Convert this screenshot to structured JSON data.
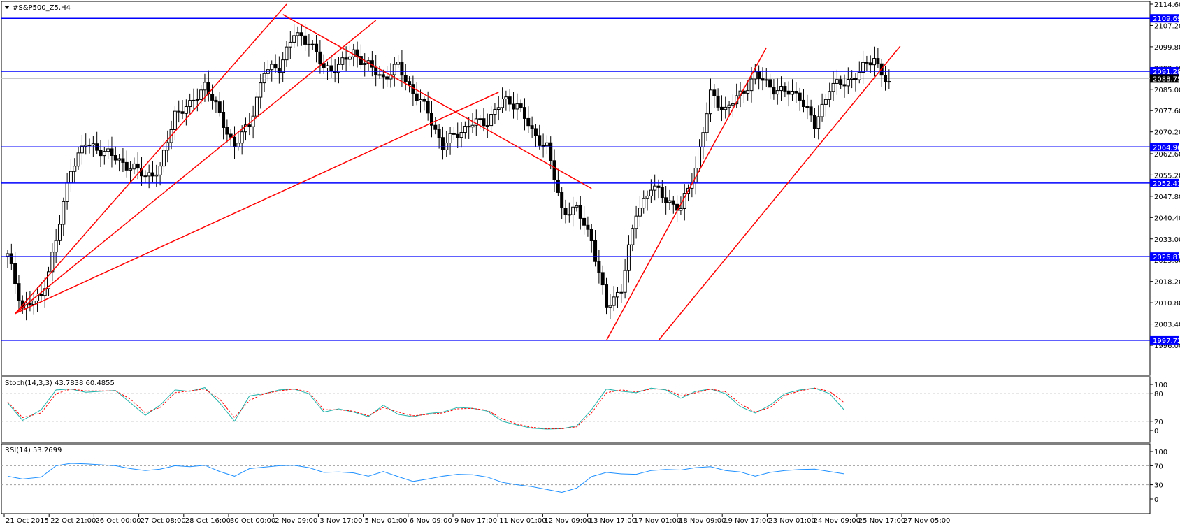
{
  "window": {
    "title": "#S&P500_Z5,H4",
    "menu_icon": "triangle-down-icon"
  },
  "colors": {
    "hline": "#0000ff",
    "trend": "#ff0000",
    "candle": "#000000",
    "stoch_main": "#20b2aa",
    "stoch_signal": "#ff0000",
    "rsi": "#1e90ff",
    "level_dash": "#a0a0a0"
  },
  "chart_data": [
    {
      "type": "candlestick",
      "title": "#S&P500_Z5,H4",
      "ylim": [
        1996.0,
        2114.6
      ],
      "y_ticks": [
        "2114.60",
        "2107.20",
        "2099.80",
        "2092.40",
        "2085.00",
        "2077.60",
        "2070.20",
        "2062.60",
        "2055.20",
        "2047.80",
        "2040.40",
        "2033.00",
        "2025.60",
        "2018.20",
        "2010.80",
        "2003.40",
        "1996.00"
      ],
      "x_ticks": [
        "21 Oct 2015",
        "22 Oct 21:00",
        "26 Oct 00:00",
        "27 Oct 08:00",
        "28 Oct 16:00",
        "30 Oct 00:00",
        "2 Nov 09:00",
        "3 Nov 17:00",
        "5 Nov 01:00",
        "6 Nov 09:00",
        "9 Nov 17:00",
        "11 Nov 01:00",
        "12 Nov 09:00",
        "13 Nov 17:00",
        "17 Nov 01:00",
        "18 Nov 09:00",
        "19 Nov 17:00",
        "23 Nov 01:00",
        "24 Nov 09:00",
        "25 Nov 17:00",
        "27 Nov 05:00"
      ],
      "current_price": 2088.75,
      "horizontal_levels": [
        2109.69,
        2091.28,
        2064.96,
        2052.41,
        2026.83,
        1997.72
      ],
      "close_path": [
        [
          0,
          2027
        ],
        [
          4,
          2009
        ],
        [
          9,
          2013
        ],
        [
          13,
          2032
        ],
        [
          17,
          2058
        ],
        [
          21,
          2066
        ],
        [
          25,
          2064
        ],
        [
          29,
          2061
        ],
        [
          33,
          2058
        ],
        [
          37,
          2055
        ],
        [
          41,
          2057
        ],
        [
          45,
          2077
        ],
        [
          49,
          2079
        ],
        [
          53,
          2087
        ],
        [
          57,
          2076
        ],
        [
          61,
          2065
        ],
        [
          65,
          2073
        ],
        [
          69,
          2091
        ],
        [
          73,
          2093
        ],
        [
          77,
          2104
        ],
        [
          81,
          2102
        ],
        [
          85,
          2092
        ],
        [
          89,
          2093
        ],
        [
          93,
          2098
        ],
        [
          97,
          2093
        ],
        [
          101,
          2089
        ],
        [
          105,
          2093
        ],
        [
          109,
          2084
        ],
        [
          113,
          2077
        ],
        [
          117,
          2065
        ],
        [
          121,
          2070
        ],
        [
          125,
          2073
        ],
        [
          129,
          2074
        ],
        [
          133,
          2081
        ],
        [
          137,
          2080
        ],
        [
          141,
          2070
        ],
        [
          145,
          2065
        ],
        [
          149,
          2043
        ],
        [
          153,
          2043
        ],
        [
          157,
          2033
        ],
        [
          161,
          2009
        ],
        [
          165,
          2016
        ],
        [
          169,
          2042
        ],
        [
          173,
          2051
        ],
        [
          177,
          2047
        ],
        [
          181,
          2043
        ],
        [
          185,
          2058
        ],
        [
          189,
          2083
        ],
        [
          193,
          2078
        ],
        [
          197,
          2083
        ],
        [
          201,
          2090
        ],
        [
          205,
          2086
        ],
        [
          209,
          2084
        ],
        [
          213,
          2083
        ],
        [
          217,
          2072
        ],
        [
          221,
          2086
        ],
        [
          225,
          2087
        ],
        [
          229,
          2091
        ],
        [
          233,
          2096
        ],
        [
          237,
          2086
        ]
      ],
      "trendlines": [
        {
          "from": [
            2,
            2007
          ],
          "to": [
            75,
            2114.6
          ]
        },
        {
          "from": [
            2,
            2007
          ],
          "to": [
            99,
            2109
          ]
        },
        {
          "from": [
            2,
            2007
          ],
          "to": [
            132,
            2084
          ]
        },
        {
          "from": [
            74,
            2111
          ],
          "to": [
            157,
            2050.5
          ]
        },
        {
          "from": [
            161,
            1997.7
          ],
          "to": [
            204,
            2099.5
          ]
        },
        {
          "from": [
            175,
            1997.7
          ],
          "to": [
            240,
            2100
          ]
        }
      ]
    },
    {
      "type": "line",
      "title": "Stoch(14,3,3) 43.7838 60.4855",
      "ylim": [
        0,
        100
      ],
      "y_ticks": [
        "100",
        "80",
        "20",
        "0"
      ],
      "levels": [
        80,
        20
      ],
      "series": [
        {
          "name": "main",
          "values": [
            [
              0,
              60
            ],
            [
              4,
              22
            ],
            [
              9,
              45
            ],
            [
              13,
              88
            ],
            [
              17,
              90
            ],
            [
              21,
              83
            ],
            [
              25,
              85
            ],
            [
              29,
              87
            ],
            [
              33,
              60
            ],
            [
              37,
              33
            ],
            [
              41,
              55
            ],
            [
              45,
              88
            ],
            [
              49,
              85
            ],
            [
              53,
              93
            ],
            [
              57,
              60
            ],
            [
              61,
              20
            ],
            [
              65,
              75
            ],
            [
              69,
              80
            ],
            [
              73,
              88
            ],
            [
              77,
              90
            ],
            [
              81,
              80
            ],
            [
              85,
              40
            ],
            [
              89,
              47
            ],
            [
              93,
              40
            ],
            [
              97,
              30
            ],
            [
              101,
              55
            ],
            [
              105,
              35
            ],
            [
              109,
              30
            ],
            [
              113,
              37
            ],
            [
              117,
              40
            ],
            [
              121,
              50
            ],
            [
              125,
              48
            ],
            [
              129,
              42
            ],
            [
              133,
              20
            ],
            [
              137,
              12
            ],
            [
              141,
              5
            ],
            [
              145,
              3
            ],
            [
              149,
              4
            ],
            [
              153,
              10
            ],
            [
              157,
              45
            ],
            [
              161,
              90
            ],
            [
              165,
              85
            ],
            [
              169,
              82
            ],
            [
              173,
              92
            ],
            [
              177,
              88
            ],
            [
              181,
              70
            ],
            [
              185,
              85
            ],
            [
              189,
              90
            ],
            [
              193,
              80
            ],
            [
              197,
              52
            ],
            [
              201,
              38
            ],
            [
              205,
              55
            ],
            [
              209,
              80
            ],
            [
              213,
              88
            ],
            [
              217,
              92
            ],
            [
              221,
              80
            ],
            [
              225,
              44
            ]
          ]
        },
        {
          "name": "signal",
          "values": [
            [
              0,
              62
            ],
            [
              4,
              28
            ],
            [
              9,
              38
            ],
            [
              13,
              80
            ],
            [
              17,
              90
            ],
            [
              21,
              86
            ],
            [
              25,
              86
            ],
            [
              29,
              86
            ],
            [
              33,
              68
            ],
            [
              37,
              38
            ],
            [
              41,
              50
            ],
            [
              45,
              82
            ],
            [
              49,
              86
            ],
            [
              53,
              90
            ],
            [
              57,
              68
            ],
            [
              61,
              28
            ],
            [
              65,
              65
            ],
            [
              69,
              80
            ],
            [
              73,
              86
            ],
            [
              77,
              90
            ],
            [
              81,
              84
            ],
            [
              85,
              45
            ],
            [
              89,
              45
            ],
            [
              93,
              42
            ],
            [
              97,
              32
            ],
            [
              101,
              50
            ],
            [
              105,
              40
            ],
            [
              109,
              32
            ],
            [
              113,
              35
            ],
            [
              117,
              38
            ],
            [
              121,
              47
            ],
            [
              125,
              48
            ],
            [
              129,
              44
            ],
            [
              133,
              25
            ],
            [
              137,
              14
            ],
            [
              141,
              7
            ],
            [
              145,
              4
            ],
            [
              149,
              4
            ],
            [
              153,
              8
            ],
            [
              157,
              38
            ],
            [
              161,
              82
            ],
            [
              165,
              88
            ],
            [
              169,
              84
            ],
            [
              173,
              90
            ],
            [
              177,
              90
            ],
            [
              181,
              75
            ],
            [
              185,
              82
            ],
            [
              189,
              90
            ],
            [
              193,
              84
            ],
            [
              197,
              58
            ],
            [
              201,
              40
            ],
            [
              205,
              50
            ],
            [
              209,
              76
            ],
            [
              213,
              86
            ],
            [
              217,
              92
            ],
            [
              221,
              85
            ],
            [
              225,
              60
            ]
          ]
        }
      ]
    },
    {
      "type": "line",
      "title": "RSI(14) 53.2699",
      "ylim": [
        0,
        100
      ],
      "y_ticks": [
        "100",
        "70",
        "30",
        "0"
      ],
      "levels": [
        70,
        30
      ],
      "series": [
        {
          "name": "RSI",
          "values": [
            [
              0,
              48
            ],
            [
              4,
              42
            ],
            [
              9,
              46
            ],
            [
              13,
              70
            ],
            [
              17,
              75
            ],
            [
              21,
              74
            ],
            [
              25,
              72
            ],
            [
              29,
              70
            ],
            [
              33,
              64
            ],
            [
              37,
              60
            ],
            [
              41,
              63
            ],
            [
              45,
              70
            ],
            [
              49,
              68
            ],
            [
              53,
              71
            ],
            [
              57,
              58
            ],
            [
              61,
              48
            ],
            [
              65,
              64
            ],
            [
              69,
              67
            ],
            [
              73,
              70
            ],
            [
              77,
              71
            ],
            [
              81,
              66
            ],
            [
              85,
              56
            ],
            [
              89,
              57
            ],
            [
              93,
              55
            ],
            [
              97,
              48
            ],
            [
              101,
              58
            ],
            [
              105,
              47
            ],
            [
              109,
              37
            ],
            [
              113,
              42
            ],
            [
              117,
              48
            ],
            [
              121,
              52
            ],
            [
              125,
              51
            ],
            [
              129,
              46
            ],
            [
              133,
              35
            ],
            [
              137,
              30
            ],
            [
              141,
              26
            ],
            [
              145,
              20
            ],
            [
              149,
              14
            ],
            [
              153,
              23
            ],
            [
              157,
              47
            ],
            [
              161,
              56
            ],
            [
              165,
              53
            ],
            [
              169,
              52
            ],
            [
              173,
              60
            ],
            [
              177,
              62
            ],
            [
              181,
              61
            ],
            [
              185,
              66
            ],
            [
              189,
              68
            ],
            [
              193,
              60
            ],
            [
              197,
              57
            ],
            [
              201,
              48
            ],
            [
              205,
              56
            ],
            [
              209,
              60
            ],
            [
              213,
              62
            ],
            [
              217,
              63
            ],
            [
              221,
              58
            ],
            [
              225,
              53
            ]
          ]
        }
      ]
    }
  ]
}
